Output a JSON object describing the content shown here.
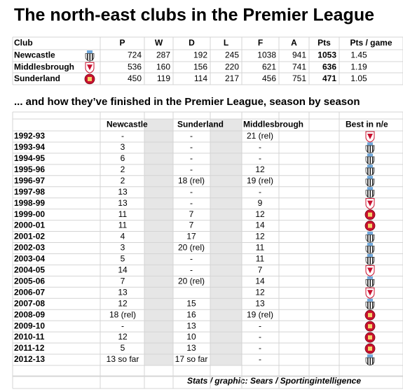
{
  "title": "The north-east clubs in the Premier League",
  "summary": {
    "headers": [
      "Club",
      "P",
      "W",
      "D",
      "L",
      "F",
      "A",
      "Pts",
      "Pts / game"
    ],
    "rows": [
      [
        "Newcastle",
        724,
        287,
        192,
        245,
        1038,
        941,
        1053,
        1.45
      ],
      [
        "Middlesbrough",
        536,
        160,
        156,
        220,
        621,
        741,
        636,
        1.19
      ],
      [
        "Sunderland",
        450,
        119,
        114,
        217,
        456,
        751,
        471,
        1.05
      ]
    ]
  },
  "subtitle": "... and how they’ve finished in the Premier League, season by season",
  "seasons": {
    "headers": [
      "Newcastle",
      "Sunderland",
      "Middlesbrough",
      "Best in n/e"
    ],
    "rows": [
      [
        "1992-93",
        "-",
        "-",
        "21 (rel)"
      ],
      [
        "1993-94",
        "3",
        "-",
        "-"
      ],
      [
        "1994-95",
        "6",
        "-",
        "-"
      ],
      [
        "1995-96",
        "2",
        "-",
        "12"
      ],
      [
        "1996-97",
        "2",
        "18 (rel)",
        "19 (rel)"
      ],
      [
        "1997-98",
        "13",
        "-",
        "-"
      ],
      [
        "1998-99",
        "13",
        "-",
        "9"
      ],
      [
        "1999-00",
        "11",
        "7",
        "12"
      ],
      [
        "2000-01",
        "11",
        "7",
        "14"
      ],
      [
        "2001-02",
        "4",
        "17",
        "12"
      ],
      [
        "2002-03",
        "3",
        "20 (rel)",
        "11"
      ],
      [
        "2003-04",
        "5",
        "-",
        "11"
      ],
      [
        "2004-05",
        "14",
        "-",
        "7"
      ],
      [
        "2005-06",
        "7",
        "20 (rel)",
        "14"
      ],
      [
        "2006-07",
        "13",
        null,
        "12"
      ],
      [
        "2007-08",
        "12",
        "15",
        "13"
      ],
      [
        "2008-09",
        "18 (rel)",
        "16",
        "19 (rel)"
      ],
      [
        "2009-10",
        "-",
        "13",
        "-"
      ],
      [
        "2010-11",
        "12",
        "10",
        "-"
      ],
      [
        "2011-12",
        "5",
        "13",
        "-"
      ],
      [
        "2012-13",
        "13 so far",
        "17 so far",
        "-"
      ]
    ]
  },
  "footer": "Stats / graphic: Sears / Sportingintelligence"
}
